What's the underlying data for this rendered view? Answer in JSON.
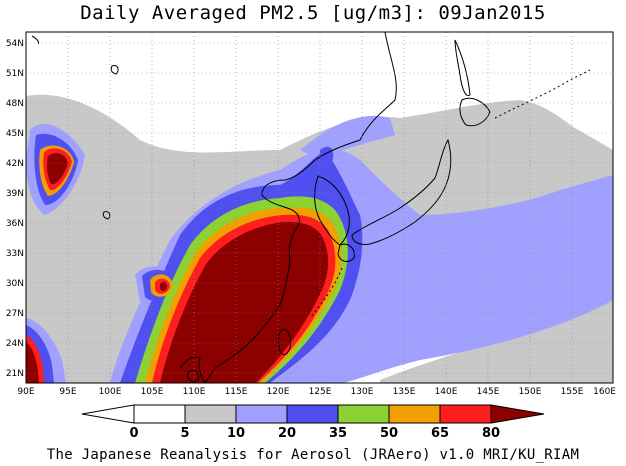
{
  "title": "Daily Averaged PM2.5 [ug/m3]: 09Jan2015",
  "footer": "The Japanese Reanalysis for Aerosol (JRAero) v1.0 MRI/KU_RIAM",
  "map": {
    "lon_range": [
      90,
      160
    ],
    "lat_range": [
      20,
      55
    ],
    "lon_ticks": [
      "90E",
      "95E",
      "100E",
      "105E",
      "110E",
      "115E",
      "120E",
      "125E",
      "130E",
      "135E",
      "140E",
      "145E",
      "150E",
      "155E",
      "160E"
    ],
    "lat_ticks": [
      "21N",
      "24N",
      "27N",
      "30N",
      "33N",
      "36N",
      "39N",
      "42N",
      "45N",
      "48N",
      "51N",
      "54N"
    ]
  },
  "colorbar": {
    "levels": [
      "0",
      "5",
      "10",
      "20",
      "35",
      "50",
      "65",
      "80"
    ],
    "colors": [
      "#ffffff",
      "#c8c8c8",
      "#a0a0ff",
      "#5050f0",
      "#8cd232",
      "#f0a000",
      "#ff1e1e",
      "#8c0000"
    ]
  }
}
